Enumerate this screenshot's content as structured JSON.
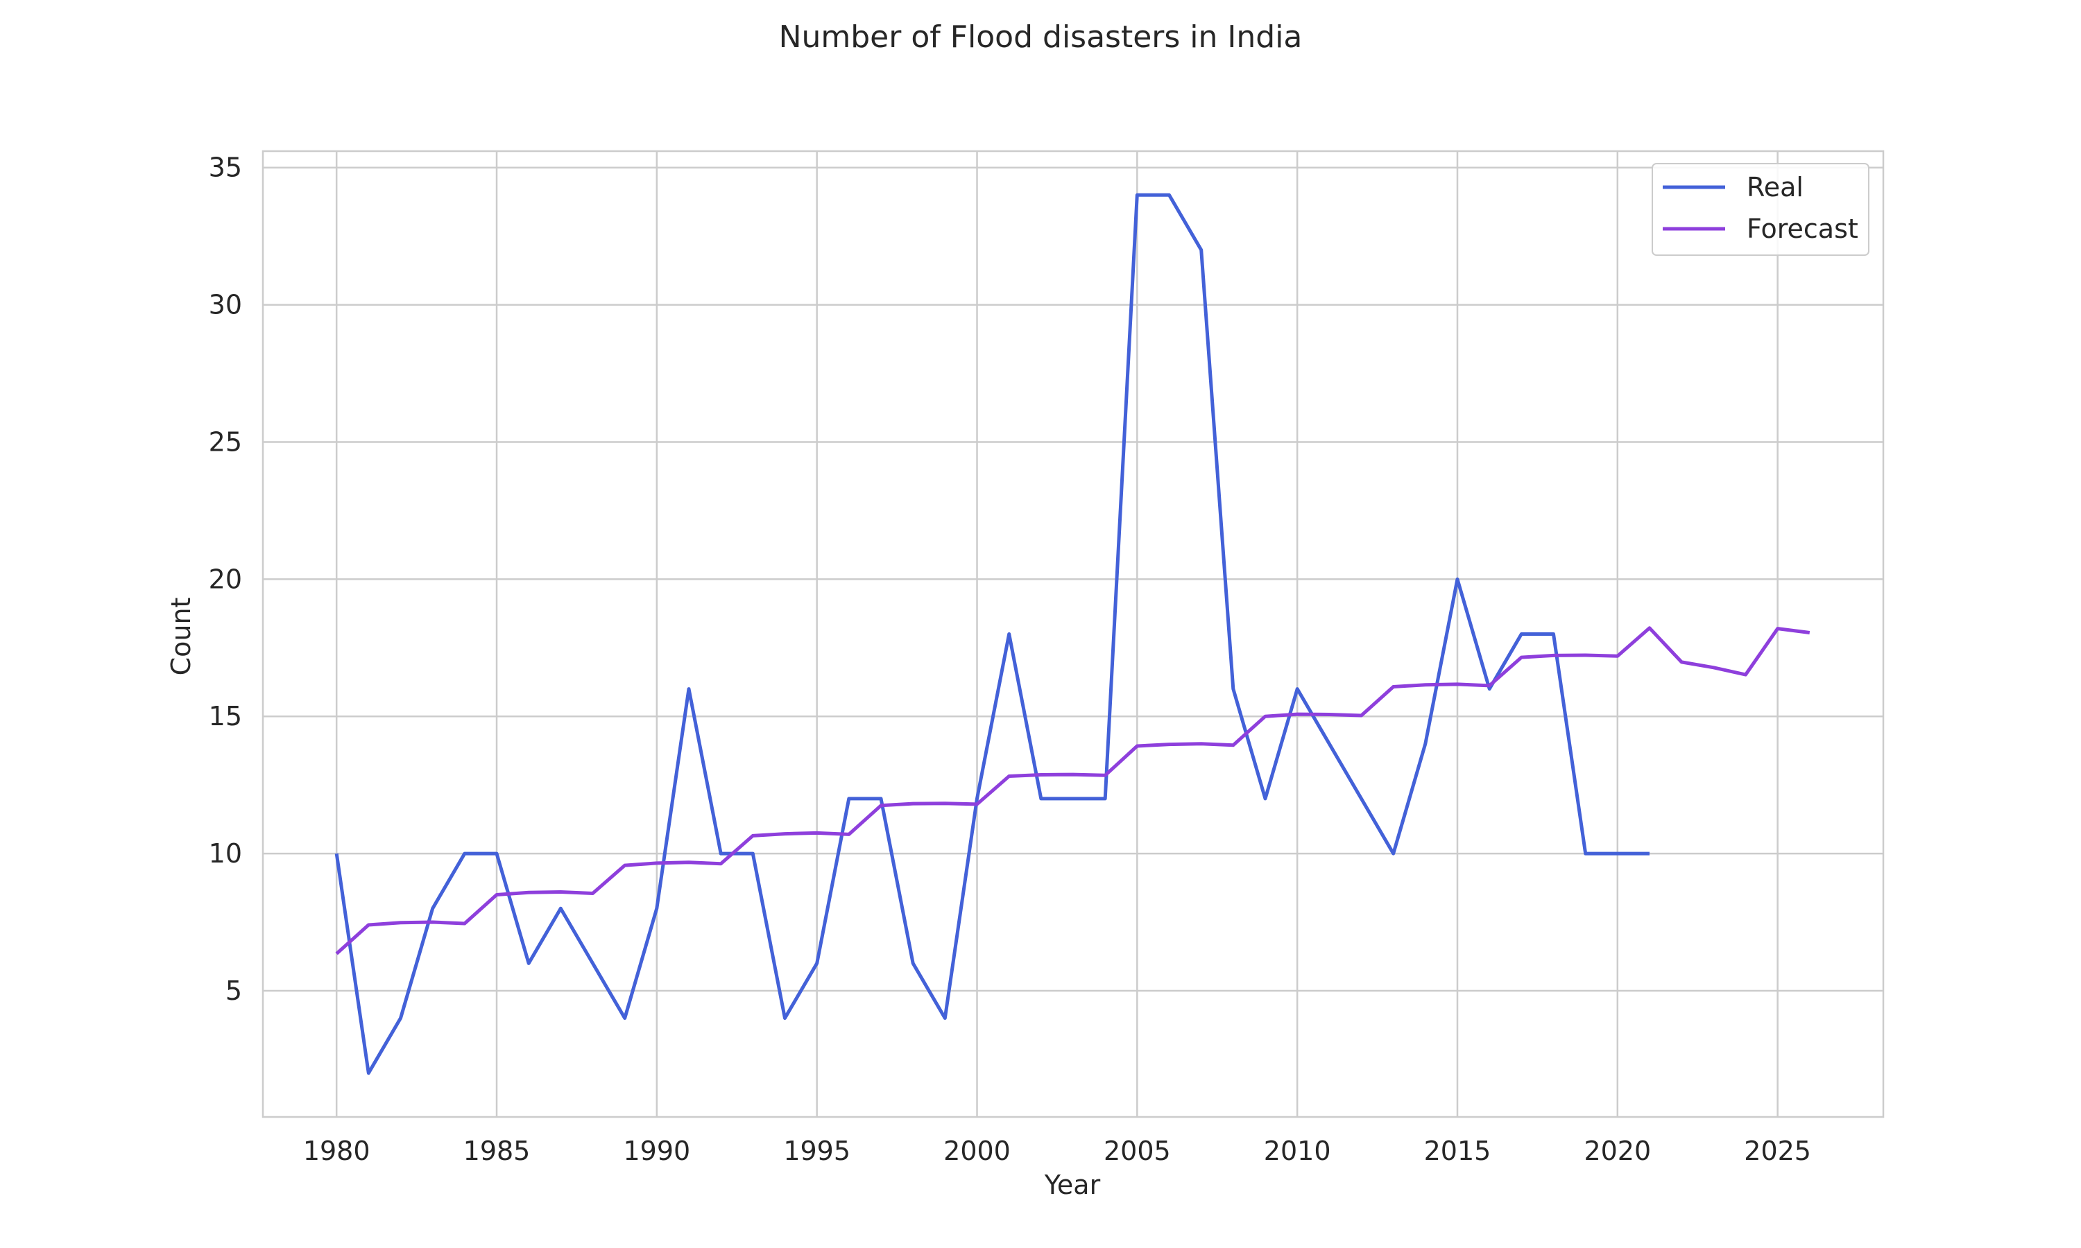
{
  "chart_data": {
    "type": "line",
    "title": "Number of Flood disasters in India",
    "xlabel": "Year",
    "ylabel": "Count",
    "xlim": [
      1977.7,
      2028.3
    ],
    "ylim": [
      0.4,
      35.6
    ],
    "xticks": [
      1980,
      1985,
      1990,
      1995,
      2000,
      2005,
      2010,
      2015,
      2020,
      2025
    ],
    "yticks": [
      5,
      10,
      15,
      20,
      25,
      30,
      35
    ],
    "grid": true,
    "legend_position": "top-right",
    "series": [
      {
        "name": "Real",
        "color": "#4361d8",
        "x": [
          1980,
          1981,
          1982,
          1983,
          1984,
          1985,
          1986,
          1987,
          1988,
          1989,
          1990,
          1991,
          1992,
          1993,
          1994,
          1995,
          1996,
          1997,
          1998,
          1999,
          2000,
          2001,
          2002,
          2003,
          2004,
          2005,
          2006,
          2007,
          2008,
          2009,
          2010,
          2011,
          2012,
          2013,
          2014,
          2015,
          2016,
          2017,
          2018,
          2019,
          2020,
          2021
        ],
        "y": [
          10,
          2,
          4,
          8,
          10,
          10,
          6,
          8,
          6,
          4,
          8,
          16,
          10,
          10,
          4,
          6,
          12,
          12,
          6,
          4,
          12,
          18,
          12,
          12,
          12,
          34,
          34,
          32,
          16,
          12,
          16,
          14,
          12,
          10,
          14,
          20,
          16,
          18,
          18,
          10,
          10,
          10
        ]
      },
      {
        "name": "Forecast",
        "color": "#8e3fdc",
        "x": [
          1980,
          1981,
          1982,
          1983,
          1984,
          1985,
          1986,
          1987,
          1988,
          1989,
          1990,
          1991,
          1992,
          1993,
          1994,
          1995,
          1996,
          1997,
          1998,
          1999,
          2000,
          2001,
          2002,
          2003,
          2004,
          2005,
          2006,
          2007,
          2008,
          2009,
          2010,
          2011,
          2012,
          2013,
          2014,
          2015,
          2016,
          2017,
          2018,
          2019,
          2020,
          2021,
          2022,
          2023,
          2024,
          2025,
          2026
        ],
        "y": [
          6.35,
          7.4,
          7.48,
          7.5,
          7.45,
          8.5,
          8.58,
          8.6,
          8.55,
          9.57,
          9.65,
          9.68,
          9.63,
          10.65,
          10.72,
          10.75,
          10.7,
          11.75,
          11.82,
          11.83,
          11.8,
          12.82,
          12.87,
          12.88,
          12.85,
          13.92,
          13.98,
          14.0,
          13.95,
          15.0,
          15.08,
          15.07,
          15.03,
          16.08,
          16.15,
          16.17,
          16.12,
          17.15,
          17.22,
          17.23,
          17.2,
          18.22,
          16.98,
          16.78,
          16.52,
          18.2,
          18.05
        ]
      }
    ]
  }
}
